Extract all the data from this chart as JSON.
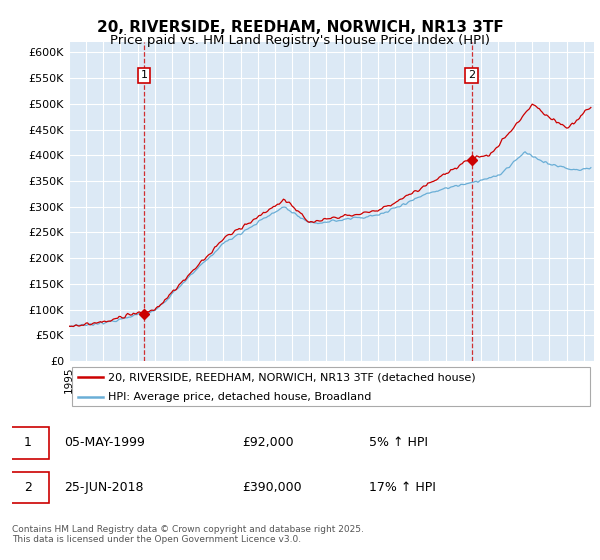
{
  "title": "20, RIVERSIDE, REEDHAM, NORWICH, NR13 3TF",
  "subtitle": "Price paid vs. HM Land Registry's House Price Index (HPI)",
  "ylim": [
    0,
    620000
  ],
  "yticks": [
    0,
    50000,
    100000,
    150000,
    200000,
    250000,
    300000,
    350000,
    400000,
    450000,
    500000,
    550000,
    600000
  ],
  "ytick_labels": [
    "£0",
    "£50K",
    "£100K",
    "£150K",
    "£200K",
    "£250K",
    "£300K",
    "£350K",
    "£400K",
    "£450K",
    "£500K",
    "£550K",
    "£600K"
  ],
  "background_color": "#dce9f5",
  "grid_color": "#ffffff",
  "red_line_color": "#cc0000",
  "blue_line_color": "#6aaed6",
  "sale1_year": 1999.37,
  "sale1_price": 92000,
  "sale2_year": 2018.46,
  "sale2_price": 390000,
  "legend_entry1": "20, RIVERSIDE, REEDHAM, NORWICH, NR13 3TF (detached house)",
  "legend_entry2": "HPI: Average price, detached house, Broadland",
  "note1_date": "05-MAY-1999",
  "note1_price": "£92,000",
  "note1_pct": "5% ↑ HPI",
  "note2_date": "25-JUN-2018",
  "note2_price": "£390,000",
  "note2_pct": "17% ↑ HPI",
  "footer": "Contains HM Land Registry data © Crown copyright and database right 2025.\nThis data is licensed under the Open Government Licence v3.0.",
  "xmin": 1995.0,
  "xmax": 2025.6
}
